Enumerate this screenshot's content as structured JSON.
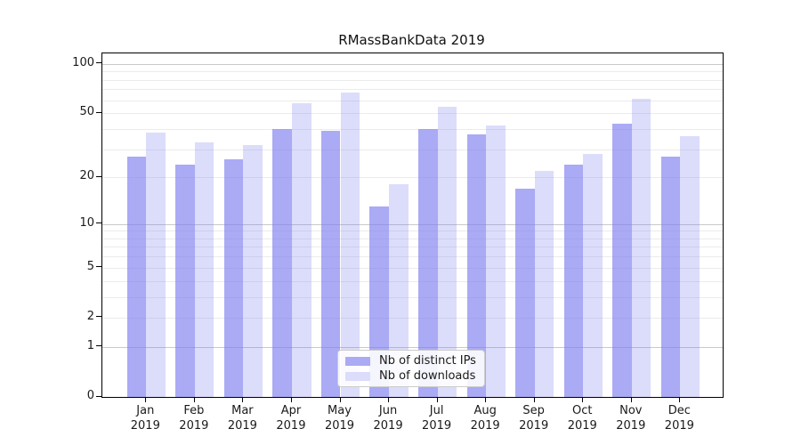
{
  "figure": {
    "title": "RMassBankData 2019"
  },
  "chart_data": {
    "type": "bar",
    "title": "RMassBankData 2019",
    "categories": [
      "Jan 2019",
      "Feb 2019",
      "Mar 2019",
      "Apr 2019",
      "May 2019",
      "Jun 2019",
      "Jul 2019",
      "Aug 2019",
      "Sep 2019",
      "Oct 2019",
      "Nov 2019",
      "Dec 2019"
    ],
    "series": [
      {
        "name": "Nb of distinct IPs",
        "values": [
          27,
          24,
          26,
          40,
          39,
          13,
          40,
          37,
          17,
          24,
          43,
          27
        ],
        "color": "rgba(124,124,240,0.65)",
        "legend_color": "#aaaaf5"
      },
      {
        "name": "Nb of downloads",
        "values": [
          38,
          33,
          32,
          58,
          67,
          18,
          55,
          42,
          22,
          28,
          61,
          36
        ],
        "color": "rgba(124,124,240,0.27)",
        "legend_color": "#dcdcfb"
      }
    ],
    "xlabel": "",
    "ylabel": "",
    "y_scale": "log1p",
    "ylim": [
      0,
      116
    ],
    "y_ticks": [
      0,
      1,
      2,
      5,
      10,
      20,
      50,
      100
    ],
    "y_major_grid": [
      1,
      10,
      100
    ],
    "y_minor_grid": [
      2,
      3,
      4,
      5,
      6,
      7,
      8,
      9,
      20,
      30,
      40,
      50,
      60,
      70,
      80,
      90
    ],
    "grid_color_major": "#c9c9c9",
    "grid_color_minor": "#ebebeb",
    "accent_color": "#7c7cf0",
    "legend": {
      "position": "lower center",
      "entries": [
        "Nb of distinct IPs",
        "Nb of downloads"
      ]
    }
  }
}
